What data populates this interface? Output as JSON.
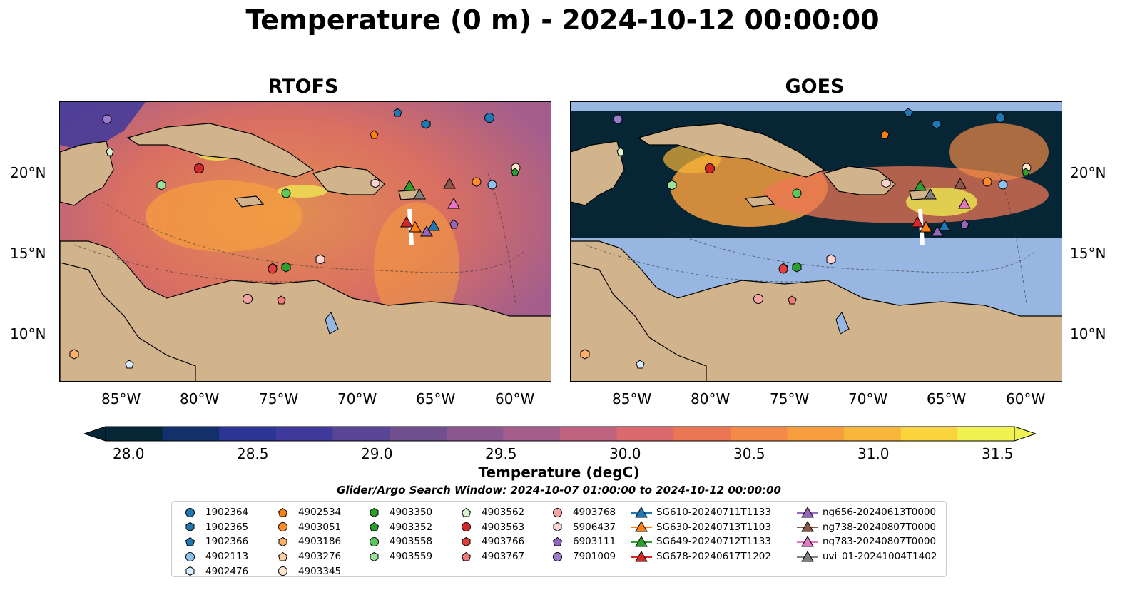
{
  "title": "Temperature (0 m) - 2024-10-12 00:00:00",
  "panels": [
    {
      "title": "RTOFS",
      "kind": "model"
    },
    {
      "title": "GOES",
      "kind": "satellite"
    }
  ],
  "lat_ticks": [
    "20°N",
    "15°N",
    "10°N"
  ],
  "lon_ticks": [
    "85°W",
    "80°W",
    "75°W",
    "70°W",
    "65°W",
    "60°W"
  ],
  "colorbar": {
    "label": "Temperature (degC)",
    "ticks": [
      "28.0",
      "28.5",
      "29.0",
      "29.5",
      "30.0",
      "30.5",
      "31.0",
      "31.5"
    ],
    "colors": [
      "#062636",
      "#13306b",
      "#2c3593",
      "#3e3a9b",
      "#584596",
      "#704f8f",
      "#8a5790",
      "#a55e8b",
      "#c06380",
      "#da6a6d",
      "#ec7554",
      "#f48a47",
      "#f69e3e",
      "#f8b739",
      "#f9d43d",
      "#f0f252"
    ]
  },
  "search_window": "Glider/Argo Search Window: 2024-10-07 01:00:00 to 2024-10-12 00:00:00",
  "legend": [
    [
      {
        "label": "1902364",
        "marker": "circle",
        "color": "#1f77b4"
      },
      {
        "label": "1902365",
        "marker": "hexagon",
        "color": "#1f77b4"
      },
      {
        "label": "1902366",
        "marker": "pentagon",
        "color": "#1f77b4"
      },
      {
        "label": "4902113",
        "marker": "circle",
        "color": "#8dc2ef"
      },
      {
        "label": "4902476",
        "marker": "hexagon",
        "color": "#d9ecff"
      }
    ],
    [
      {
        "label": "4902534",
        "marker": "pentagon",
        "color": "#ff7f0e"
      },
      {
        "label": "4903051",
        "marker": "circle",
        "color": "#ff8c29"
      },
      {
        "label": "4903186",
        "marker": "hexagon",
        "color": "#ffb06b"
      },
      {
        "label": "4903276",
        "marker": "pentagon",
        "color": "#ffcf9e"
      },
      {
        "label": "4903345",
        "marker": "circle",
        "color": "#ffe6cc"
      }
    ],
    [
      {
        "label": "4903350",
        "marker": "hexagon",
        "color": "#2ca02c"
      },
      {
        "label": "4903352",
        "marker": "pentagon",
        "color": "#2ca02c"
      },
      {
        "label": "4903558",
        "marker": "circle",
        "color": "#5ac85a"
      },
      {
        "label": "4903559",
        "marker": "hexagon",
        "color": "#9ae29a"
      }
    ],
    [
      {
        "label": "4903562",
        "marker": "pentagon",
        "color": "#d8f5d0"
      },
      {
        "label": "4903563",
        "marker": "circle",
        "color": "#d62728"
      },
      {
        "label": "4903766",
        "marker": "hexagon",
        "color": "#e2403f"
      },
      {
        "label": "4903767",
        "marker": "pentagon",
        "color": "#f07a78"
      }
    ],
    [
      {
        "label": "4903768",
        "marker": "circle",
        "color": "#f4a3a0"
      },
      {
        "label": "5906437",
        "marker": "hexagon",
        "color": "#fcd3d0"
      },
      {
        "label": "6903111",
        "marker": "pentagon",
        "color": "#9467bd"
      },
      {
        "label": "7901009",
        "marker": "circle",
        "color": "#9b7ccc"
      }
    ],
    [
      {
        "label": "SG610-20240711T1133",
        "marker": "triangle",
        "color": "#1f77b4"
      },
      {
        "label": "SG630-20240713T1103",
        "marker": "triangle",
        "color": "#ff7f0e"
      },
      {
        "label": "SG649-20240712T1133",
        "marker": "triangle",
        "color": "#2ca02c"
      },
      {
        "label": "SG678-20240617T1202",
        "marker": "triangle",
        "color": "#d62728"
      }
    ],
    [
      {
        "label": "ng656-20240613T0000",
        "marker": "triangle",
        "color": "#9467bd"
      },
      {
        "label": "ng738-20240807T0000",
        "marker": "triangle",
        "color": "#8c564b"
      },
      {
        "label": "ng783-20240807T0000",
        "marker": "triangle",
        "color": "#e377c2"
      },
      {
        "label": "uvi_01-20241004T1402",
        "marker": "triangle",
        "color": "#7f7f7f"
      }
    ]
  ],
  "colors": {
    "land": "#d2b48c",
    "sat_nodata": "#97b6e2",
    "ocean_warm": "#c06380"
  }
}
